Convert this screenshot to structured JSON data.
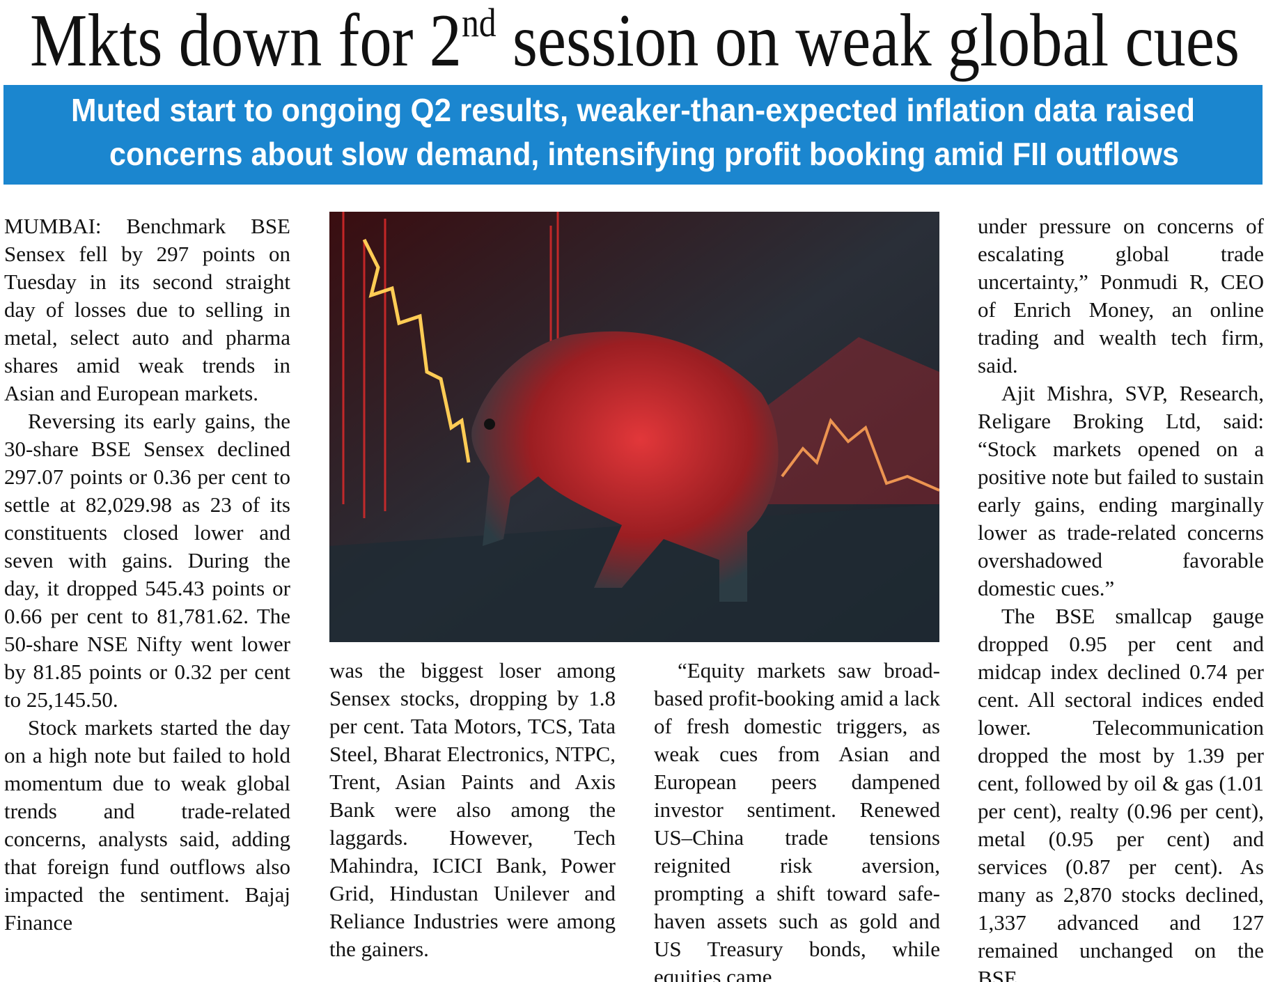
{
  "headline": {
    "before": "Mkts down for 2",
    "sup": "nd",
    "after": " session on weak global cues"
  },
  "subheadline": [
    "Muted start to ongoing Q2 results, weaker-than-expected inflation data raised",
    "concerns about slow demand, intensifying profit booking amid FII outflows"
  ],
  "columns": [
    {
      "paragraphs": [
        "MUMBAI: Benchmark BSE Sensex fell by 297 points on Tuesday in its second straight day of losses due to selling in metal, select auto and pharma shares amid weak trends in Asian and European markets.",
        "Reversing its early gains, the 30-share BSE Sensex declined 297.07 points or 0.36 per cent to settle at 82,029.98 as 23 of its constituents closed lower and seven with gains. During the day, it dropped 545.43 points or 0.66 per cent to 81,781.62. The 50-share NSE Nifty went lower by 81.85 points or 0.32 per cent to 25,145.50.",
        "Stock markets started the day on a high note but failed to hold momentum due to weak global trends and trade-related concerns, analysts said, adding that foreign fund outflows also impacted the sentiment. Bajaj Finance"
      ]
    },
    {
      "paragraphs": [
        "was the biggest loser among Sensex stocks, dropping by 1.8 per cent. Tata Motors, TCS, Tata Steel, Bharat Electronics, NTPC, Trent, Asian Paints and Axis Bank were also among the laggards. However, Tech Mahindra, ICICI Bank, Power Grid, Hindustan Unilever and Reliance Industries were among the gainers."
      ]
    },
    {
      "paragraphs": [
        "“Equity markets saw broad-based profit-booking amid a lack of fresh domestic triggers, as weak cues from Asian and European peers dampened investor sentiment. Renewed US–China trade tensions reignited risk aversion, prompting a shift toward safe-haven assets such as gold and US Treasury bonds, while equities came"
      ]
    },
    {
      "paragraphs": [
        "under pressure on concerns of escalating global trade uncertainty,” Ponmudi R, CEO of Enrich Money, an online trading and wealth tech firm, said.",
        "Ajit Mishra, SVP, Research, Religare Broking Ltd, said: “Stock markets opened on a positive note but failed to sustain early gains, ending marginally lower as trade-related concerns overshadowed favorable domestic cues.”",
        "The BSE smallcap gauge dropped 0.95 per cent and midcap index declined 0.74 per cent. All sectoral indices ended lower. Telecommunication dropped the most by 1.39 per cent, followed by oil & gas (1.01 per cent), realty (0.96 per cent), metal (0.95 per cent) and services (0.87 per cent). As many as 2,870 stocks declined, 1,337 advanced and 127 remained unchanged on the BSE."
      ]
    }
  ]
}
